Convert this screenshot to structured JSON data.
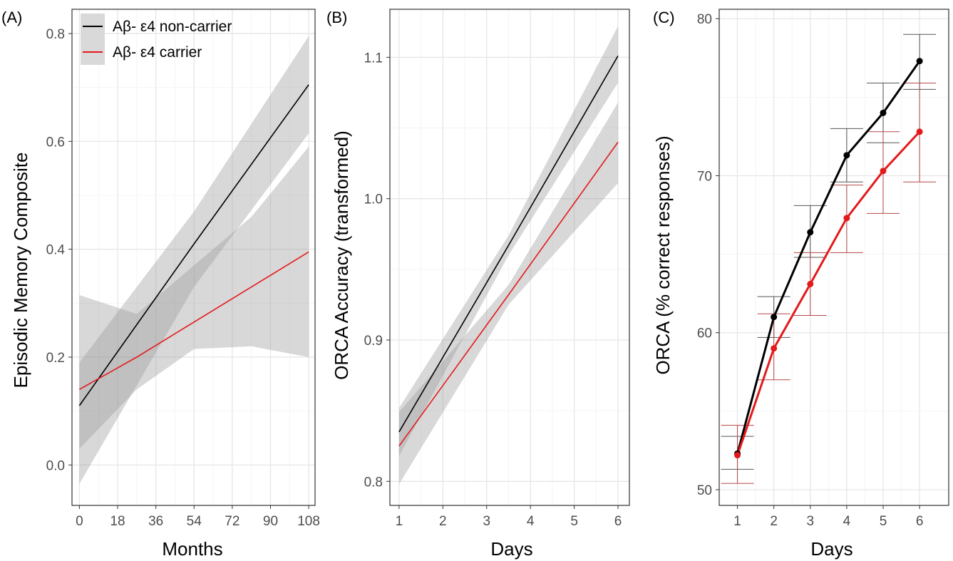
{
  "chart_data": [
    {
      "panel_label": "(A)",
      "type": "line",
      "xlabel": "Months",
      "ylabel": "Episodic Memory Composite",
      "xlim": [
        -3.5,
        111
      ],
      "ylim": [
        -0.075,
        0.845
      ],
      "x_ticks": [
        0,
        18,
        36,
        54,
        72,
        90,
        108
      ],
      "y_ticks": [
        0.0,
        0.2,
        0.4,
        0.6,
        0.8
      ],
      "y_tick_labels": [
        "0.0",
        "0.2",
        "0.4",
        "0.6",
        "0.8"
      ],
      "grid": true,
      "legend_position": "top-left",
      "legend": [
        {
          "label": "Aβ- ε4 non-carrier",
          "color": "#000000"
        },
        {
          "label": "Aβ- ε4 carrier",
          "color": "#e31a1c"
        }
      ],
      "series": [
        {
          "name": "Aβ- ε4 non-carrier",
          "color": "#000000",
          "x": [
            0,
            54,
            108
          ],
          "y": [
            0.11,
            0.41,
            0.705
          ],
          "lower": [
            -0.035,
            0.33,
            0.615
          ],
          "upper": [
            0.19,
            0.47,
            0.795
          ]
        },
        {
          "name": "Aβ- ε4 carrier",
          "color": "#e31a1c",
          "x": [
            0,
            27,
            54,
            81,
            108
          ],
          "y": [
            0.14,
            0.2,
            0.265,
            0.33,
            0.395
          ],
          "lower": [
            0.03,
            0.14,
            0.215,
            0.22,
            0.2
          ],
          "upper": [
            0.315,
            0.28,
            0.37,
            0.46,
            0.59
          ]
        }
      ]
    },
    {
      "panel_label": "(B)",
      "type": "line",
      "xlabel": "Days",
      "ylabel": "ORCA Accuracy (transformed)",
      "xlim": [
        0.79,
        6.26
      ],
      "ylim": [
        0.783,
        1.134
      ],
      "x_ticks": [
        1,
        2,
        3,
        4,
        5,
        6
      ],
      "y_ticks": [
        0.8,
        0.9,
        1.0,
        1.1
      ],
      "y_tick_labels": [
        "0.8",
        "0.9",
        "1.0",
        "1.1"
      ],
      "grid": true,
      "series": [
        {
          "name": "",
          "color": "#000000",
          "x": [
            1,
            3.5,
            6
          ],
          "y": [
            0.835,
            0.967,
            1.101
          ],
          "lower": [
            0.818,
            0.96,
            1.082
          ],
          "upper": [
            0.852,
            0.974,
            1.122
          ]
        },
        {
          "name": "",
          "color": "#e31a1c",
          "x": [
            1,
            3.5,
            6
          ],
          "y": [
            0.825,
            0.932,
            1.04
          ],
          "lower": [
            0.798,
            0.925,
            1.011
          ],
          "upper": [
            0.849,
            0.939,
            1.068
          ]
        }
      ]
    },
    {
      "panel_label": "(C)",
      "type": "line",
      "xlabel": "Days",
      "ylabel": "ORCA (% correct responses)",
      "xlim": [
        0.5,
        6.8
      ],
      "ylim": [
        49,
        80.6
      ],
      "x_ticks": [
        1,
        2,
        3,
        4,
        5,
        6
      ],
      "y_ticks": [
        50,
        60,
        70,
        80
      ],
      "y_tick_labels": [
        "50",
        "60",
        "70",
        "80"
      ],
      "grid": true,
      "series": [
        {
          "name": "",
          "color": "#000000",
          "x": [
            1,
            2,
            3,
            4,
            5,
            6
          ],
          "y": [
            52.3,
            61.0,
            66.4,
            71.3,
            74.0,
            77.3
          ],
          "error_low": [
            51.3,
            59.7,
            64.8,
            69.6,
            72.1,
            75.5
          ],
          "error_high": [
            53.4,
            62.3,
            68.1,
            73.0,
            75.9,
            79.0
          ]
        },
        {
          "name": "",
          "color": "#e31a1c",
          "x": [
            1,
            2,
            3,
            4,
            5,
            6
          ],
          "y": [
            52.2,
            59.0,
            63.1,
            67.3,
            70.3,
            72.8
          ],
          "error_low": [
            50.4,
            57.0,
            61.1,
            65.1,
            67.6,
            69.6
          ],
          "error_high": [
            54.1,
            61.2,
            65.1,
            69.4,
            72.8,
            75.9
          ]
        }
      ]
    }
  ]
}
